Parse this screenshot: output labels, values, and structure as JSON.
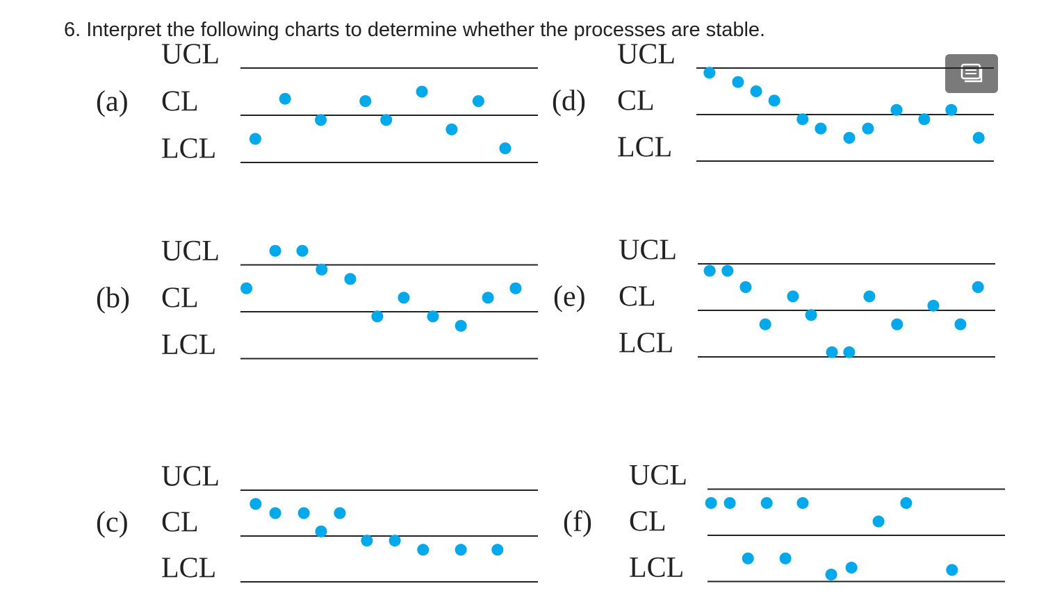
{
  "title": "6. Interpret the following charts to determine whether the processes are stable.",
  "chart_data": [
    {
      "type": "scatter",
      "label": "(a)",
      "color": "#00a8ec",
      "xlim": [
        0,
        100
      ],
      "ylim": [
        -1.5,
        1.5
      ],
      "yticks": [
        {
          "value": 1,
          "label": "UCL"
        },
        {
          "value": 0,
          "label": "CL"
        },
        {
          "value": -1,
          "label": "LCL"
        }
      ],
      "x": [
        5,
        15,
        27,
        42,
        49,
        61,
        71,
        80,
        89
      ],
      "values": [
        -0.5,
        0.35,
        -0.1,
        0.3,
        -0.1,
        0.5,
        -0.3,
        0.3,
        -0.7
      ]
    },
    {
      "type": "scatter",
      "label": "(b)",
      "color": "#00a8ec",
      "xlim": [
        0,
        100
      ],
      "ylim": [
        -1.5,
        1.5
      ],
      "yticks": [
        {
          "value": 1,
          "label": "UCL"
        },
        {
          "value": 0,
          "label": "CL"
        },
        {
          "value": -1,
          "label": "LCL"
        }
      ],
      "x": [
        2,
        11.7,
        20.8,
        27.3,
        36.9,
        46,
        54.9,
        64.7,
        74.1,
        83.2,
        92.5
      ],
      "values": [
        0.5,
        1.3,
        1.3,
        0.9,
        0.7,
        -0.1,
        0.3,
        -0.1,
        -0.3,
        0.3,
        0.5
      ]
    },
    {
      "type": "scatter",
      "label": "(c)",
      "color": "#00a8ec",
      "xlim": [
        0,
        100
      ],
      "ylim": [
        -1.5,
        1.5
      ],
      "yticks": [
        {
          "value": 1,
          "label": "UCL"
        },
        {
          "value": 0,
          "label": "CL"
        },
        {
          "value": -1,
          "label": "LCL"
        }
      ],
      "x": [
        5.1,
        11.7,
        21.3,
        27.1,
        33.4,
        42.5,
        51.9,
        61.4,
        74.1,
        86.4
      ],
      "values": [
        0.7,
        0.5,
        0.5,
        0.1,
        0.5,
        -0.1,
        -0.1,
        -0.3,
        -0.3,
        -0.3
      ]
    },
    {
      "type": "scatter",
      "label": "(d)",
      "color": "#00a8ec",
      "xlim": [
        0,
        100
      ],
      "ylim": [
        -1.5,
        1.5
      ],
      "yticks": [
        {
          "value": 1,
          "label": "UCL"
        },
        {
          "value": 0,
          "label": "CL"
        },
        {
          "value": -1,
          "label": "LCL"
        }
      ],
      "x": [
        4.4,
        14,
        20.1,
        26.2,
        35.7,
        41.8,
        51.4,
        57.7,
        67.3,
        76.6,
        85.7,
        94.9
      ],
      "values": [
        0.9,
        0.7,
        0.5,
        0.3,
        -0.1,
        -0.3,
        -0.5,
        -0.3,
        0.1,
        -0.1,
        0.1,
        -0.5
      ]
    },
    {
      "type": "scatter",
      "label": "(e)",
      "color": "#00a8ec",
      "xlim": [
        0,
        100
      ],
      "ylim": [
        -1.5,
        1.5
      ],
      "yticks": [
        {
          "value": 1,
          "label": "UCL"
        },
        {
          "value": 0,
          "label": "CL"
        },
        {
          "value": -1,
          "label": "LCL"
        }
      ],
      "x": [
        4,
        10,
        16.1,
        22.7,
        32,
        38.1,
        45.1,
        50.9,
        57.7,
        67,
        79.2,
        88.3,
        94.2
      ],
      "values": [
        0.85,
        0.85,
        0.5,
        -0.3,
        0.3,
        -0.1,
        -0.9,
        -0.9,
        0.3,
        -0.3,
        0.1,
        -0.3,
        0.5
      ]
    },
    {
      "type": "scatter",
      "label": "(f)",
      "color": "#00a8ec",
      "xlim": [
        0,
        100
      ],
      "ylim": [
        -1.5,
        1.5
      ],
      "yticks": [
        {
          "value": 1,
          "label": "UCL"
        },
        {
          "value": 0,
          "label": "CL"
        },
        {
          "value": -1,
          "label": "LCL"
        }
      ],
      "x": [
        1.2,
        7.5,
        13.6,
        19.9,
        26.2,
        32,
        41.6,
        48.4,
        57.5,
        66.8,
        82.2
      ],
      "values": [
        0.7,
        0.7,
        -0.5,
        0.7,
        -0.5,
        0.7,
        -0.85,
        -0.7,
        0.3,
        0.7,
        -0.75
      ]
    }
  ]
}
